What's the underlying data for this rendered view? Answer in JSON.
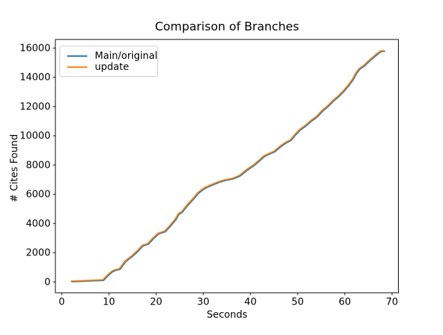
{
  "chart_data": {
    "type": "line",
    "title": "Comparison of Branches",
    "xlabel": "Seconds",
    "ylabel": "# Cites Found",
    "x_ticks": [
      0,
      10,
      20,
      30,
      40,
      50,
      60,
      70
    ],
    "y_ticks": [
      0,
      2000,
      4000,
      6000,
      8000,
      10000,
      12000,
      14000,
      16000
    ],
    "xlim": [
      -1.35,
      71.35
    ],
    "ylim": [
      -740,
      16590
    ],
    "grid": false,
    "legend_position": "upper left",
    "series": [
      {
        "name": "Main/original",
        "color": "#1f77b4",
        "x": [
          2,
          8.7,
          9.7,
          10.7,
          11.5,
          12.2,
          13.4,
          14.9,
          16,
          17.1,
          18.2,
          19.3,
          20.4,
          21.8,
          22.9,
          24.1,
          24.7,
          25.4,
          26.6,
          27.8,
          28.8,
          29.9,
          30.7,
          31.8,
          33.2,
          34.7,
          36.2,
          37.6,
          39.1,
          40.6,
          41.8,
          42.8,
          44,
          45,
          46.2,
          47.5,
          48.4,
          49.4,
          50.4,
          51.6,
          52.8,
          54,
          55.1,
          56.3,
          57.5,
          58.7,
          59.7,
          60.7,
          61.6,
          62.4,
          63.1,
          64,
          64.9,
          65.9,
          66.8,
          67.6,
          68.3
        ],
        "y": [
          60,
          150,
          480,
          760,
          860,
          905,
          1430,
          1810,
          2140,
          2520,
          2620,
          3000,
          3330,
          3480,
          3860,
          4330,
          4670,
          4810,
          5290,
          5710,
          6100,
          6380,
          6520,
          6670,
          6860,
          7000,
          7090,
          7280,
          7670,
          8000,
          8330,
          8620,
          8810,
          8950,
          9280,
          9570,
          9710,
          10090,
          10430,
          10710,
          11050,
          11330,
          11710,
          12040,
          12430,
          12760,
          13090,
          13470,
          13860,
          14330,
          14620,
          14810,
          15090,
          15380,
          15620,
          15810,
          15830
        ]
      },
      {
        "name": "update",
        "color": "#ff7f0e",
        "x": [
          2,
          8.7,
          9.7,
          10.7,
          11.5,
          12.2,
          13.4,
          14.9,
          16,
          17.1,
          18.2,
          19.3,
          20.4,
          21.8,
          22.9,
          24.1,
          24.7,
          25.4,
          26.6,
          27.8,
          28.8,
          29.9,
          30.7,
          31.8,
          33.2,
          34.7,
          36.2,
          37.6,
          39.1,
          40.6,
          41.8,
          42.8,
          44,
          45,
          46.2,
          47.5,
          48.4,
          49.4,
          50.4,
          51.6,
          52.8,
          54,
          55.1,
          56.3,
          57.5,
          58.7,
          59.7,
          60.7,
          61.6,
          62.4,
          63.1,
          64,
          64.9,
          65.9,
          66.8,
          67.6,
          68.3
        ],
        "y": [
          60,
          150,
          480,
          760,
          860,
          905,
          1430,
          1810,
          2140,
          2520,
          2620,
          3000,
          3330,
          3480,
          3860,
          4330,
          4670,
          4810,
          5290,
          5710,
          6100,
          6380,
          6520,
          6670,
          6860,
          7000,
          7090,
          7280,
          7670,
          8000,
          8330,
          8620,
          8810,
          8950,
          9280,
          9570,
          9710,
          10090,
          10430,
          10710,
          11050,
          11330,
          11710,
          12040,
          12430,
          12760,
          13090,
          13470,
          13860,
          14330,
          14620,
          14810,
          15090,
          15380,
          15620,
          15810,
          15830
        ]
      }
    ]
  }
}
